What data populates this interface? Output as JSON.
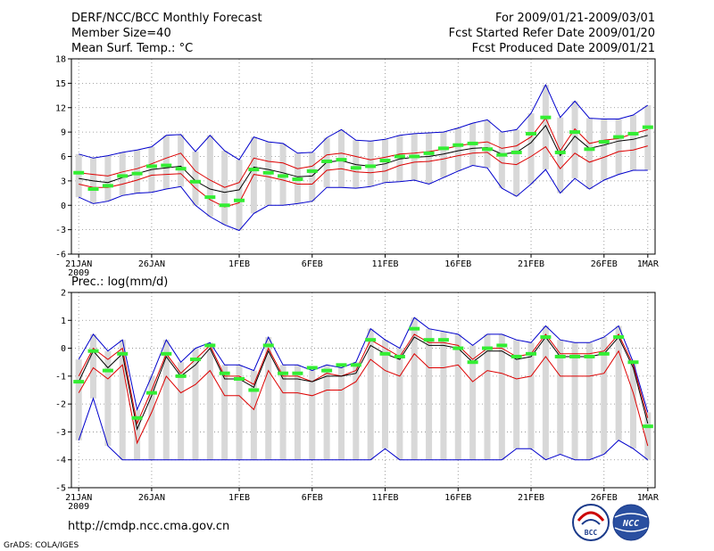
{
  "header": {
    "title": "DERF/NCC/BCC Monthly Forecast",
    "member_size": "Member Size=40",
    "variable1": "Mean Surf. Temp.: °C",
    "period": "For 2009/01/21-2009/03/01",
    "start_date": "Fcst Started Refer Date 2009/01/20",
    "produced_date": "Fcst Produced Date 2009/01/21"
  },
  "footer": {
    "url": "http://cmdp.ncc.cma.gov.cn",
    "grads": "GrADS: COLA/IGES",
    "logo_bcc": "BCC",
    "logo_ncc": "NCC"
  },
  "colors": {
    "max_min": "#0000cc",
    "plus_minus_sd": "#dd0000",
    "mean": "#000000",
    "box": "#d8d8d8",
    "obs": "#33ee33",
    "grid": "#888888"
  },
  "chart_data": [
    {
      "type": "line",
      "title": "Mean Surf. Temp.: °C",
      "x_ticks": [
        "21JAN",
        "26JAN",
        "1FEB",
        "6FEB",
        "11FEB",
        "16FEB",
        "21FEB",
        "26FEB",
        "1MAR"
      ],
      "x_year": "2009",
      "ylim": [
        -6,
        18
      ],
      "y_ticks": [
        "-6",
        "-3",
        "0",
        "3",
        "6",
        "9",
        "12",
        "15",
        "18"
      ],
      "days": 40,
      "series": [
        {
          "name": "max",
          "values": [
            6.3,
            5.8,
            6.1,
            6.5,
            6.8,
            7.2,
            8.6,
            8.7,
            6.6,
            8.6,
            6.7,
            5.6,
            8.4,
            7.8,
            7.6,
            6.4,
            6.5,
            8.3,
            9.3,
            8.0,
            7.9,
            8.1,
            8.6,
            8.8,
            8.9,
            9.0,
            9.5,
            10.1,
            10.5,
            9.0,
            9.3,
            11.3,
            14.8,
            10.8,
            12.8,
            10.7,
            10.6,
            10.6,
            11.1,
            12.3
          ]
        },
        {
          "name": "plus_sd",
          "values": [
            4.0,
            3.8,
            3.6,
            4.1,
            4.5,
            5.1,
            5.8,
            6.4,
            4.2,
            3.1,
            2.2,
            2.8,
            5.8,
            5.4,
            5.2,
            4.5,
            4.8,
            6.2,
            6.4,
            6.0,
            5.6,
            5.9,
            6.3,
            6.4,
            6.6,
            6.9,
            7.3,
            7.6,
            7.8,
            7.0,
            7.3,
            8.4,
            10.7,
            6.7,
            9.4,
            7.6,
            8.0,
            8.2,
            8.8,
            9.3
          ]
        },
        {
          "name": "mean",
          "values": [
            3.3,
            3.0,
            2.8,
            3.4,
            3.9,
            4.4,
            4.6,
            4.8,
            3.0,
            2.0,
            1.6,
            1.9,
            4.7,
            4.4,
            4.0,
            3.5,
            3.6,
            5.3,
            5.5,
            5.0,
            4.8,
            5.1,
            5.7,
            5.9,
            6.0,
            6.3,
            6.7,
            7.0,
            7.1,
            6.3,
            6.5,
            7.7,
            9.8,
            6.1,
            8.5,
            7.0,
            7.4,
            7.9,
            8.1,
            8.6
          ]
        },
        {
          "name": "minus_sd",
          "values": [
            2.6,
            2.2,
            2.2,
            2.6,
            3.1,
            3.7,
            3.8,
            3.9,
            2.1,
            0.7,
            -0.2,
            0.3,
            3.8,
            3.5,
            3.1,
            2.6,
            2.6,
            4.3,
            4.5,
            4.1,
            4.0,
            4.2,
            4.9,
            5.3,
            5.4,
            5.7,
            6.1,
            6.4,
            6.5,
            5.2,
            5.0,
            6.0,
            7.2,
            4.5,
            6.4,
            5.3,
            5.9,
            6.6,
            6.8,
            7.3
          ]
        },
        {
          "name": "min",
          "values": [
            1.0,
            0.2,
            0.5,
            1.2,
            1.5,
            1.6,
            2.0,
            2.3,
            0.0,
            -1.4,
            -2.4,
            -3.1,
            -1.0,
            0.0,
            0.0,
            0.2,
            0.5,
            2.2,
            2.2,
            2.1,
            2.3,
            2.8,
            2.9,
            3.1,
            2.6,
            3.4,
            4.2,
            4.9,
            4.6,
            2.1,
            1.1,
            2.6,
            4.4,
            1.5,
            3.3,
            2.0,
            3.1,
            3.8,
            4.3,
            4.3
          ]
        },
        {
          "name": "obs",
          "values": [
            4.0,
            2.0,
            2.4,
            3.6,
            3.9,
            4.8,
            4.9,
            4.5,
            2.9,
            1.0,
            0.0,
            0.6,
            4.4,
            4.0,
            3.6,
            3.2,
            4.2,
            5.4,
            5.6,
            4.6,
            4.8,
            5.5,
            6.0,
            6.0,
            6.4,
            7.0,
            7.4,
            7.6,
            6.9,
            6.2,
            6.5,
            8.8,
            10.8,
            6.5,
            9.0,
            6.9,
            7.8,
            8.4,
            8.8,
            9.6
          ]
        }
      ]
    },
    {
      "type": "line",
      "title": "Prec.: log(mm/d)",
      "x_ticks": [
        "21JAN",
        "26JAN",
        "1FEB",
        "6FEB",
        "11FEB",
        "16FEB",
        "21FEB",
        "26FEB",
        "1MAR"
      ],
      "x_year": "2009",
      "ylim": [
        -5,
        2
      ],
      "y_ticks": [
        "-5",
        "-4",
        "-3",
        "-2",
        "-1",
        "0",
        "1",
        "2"
      ],
      "days": 40,
      "series": [
        {
          "name": "max",
          "values": [
            -0.4,
            0.5,
            -0.1,
            0.3,
            -2.2,
            -1.0,
            0.3,
            -0.5,
            0.0,
            0.2,
            -0.6,
            -0.6,
            -0.8,
            0.4,
            -0.6,
            -0.6,
            -0.8,
            -0.6,
            -0.7,
            -0.5,
            0.7,
            0.3,
            0.0,
            1.1,
            0.7,
            0.6,
            0.5,
            0.1,
            0.5,
            0.5,
            0.3,
            0.2,
            0.8,
            0.3,
            0.2,
            0.2,
            0.4,
            0.8,
            -0.5,
            -2.3
          ]
        },
        {
          "name": "plus_sd",
          "values": [
            -1.0,
            0.0,
            -0.4,
            0.0,
            -2.7,
            -1.5,
            -0.2,
            -0.9,
            -0.4,
            0.1,
            -1.0,
            -1.0,
            -1.3,
            0.0,
            -1.0,
            -1.0,
            -1.2,
            -0.9,
            -1.0,
            -0.8,
            0.3,
            0.0,
            -0.3,
            0.5,
            0.2,
            0.2,
            0.1,
            -0.4,
            0.0,
            0.0,
            -0.3,
            -0.2,
            0.5,
            -0.2,
            -0.2,
            -0.2,
            -0.1,
            0.5,
            -0.6,
            -2.5
          ]
        },
        {
          "name": "mean",
          "values": [
            -1.2,
            -0.1,
            -0.7,
            -0.2,
            -2.9,
            -1.7,
            -0.3,
            -1.0,
            -0.6,
            0.0,
            -1.1,
            -1.1,
            -1.4,
            -0.1,
            -1.1,
            -1.1,
            -1.2,
            -1.0,
            -1.0,
            -0.9,
            0.1,
            -0.2,
            -0.4,
            0.4,
            0.1,
            0.1,
            0.0,
            -0.5,
            -0.1,
            -0.1,
            -0.4,
            -0.3,
            0.4,
            -0.3,
            -0.3,
            -0.3,
            -0.2,
            0.4,
            -0.7,
            -2.7
          ]
        },
        {
          "name": "minus_sd",
          "values": [
            -1.6,
            -0.7,
            -1.1,
            -0.6,
            -3.4,
            -2.3,
            -1.0,
            -1.6,
            -1.3,
            -0.8,
            -1.7,
            -1.7,
            -2.2,
            -0.8,
            -1.6,
            -1.6,
            -1.7,
            -1.5,
            -1.5,
            -1.2,
            -0.4,
            -0.8,
            -1.0,
            -0.2,
            -0.7,
            -0.7,
            -0.6,
            -1.2,
            -0.8,
            -0.9,
            -1.1,
            -1.0,
            -0.3,
            -1.0,
            -1.0,
            -1.0,
            -0.9,
            -0.1,
            -1.6,
            -3.5
          ]
        },
        {
          "name": "min",
          "values": [
            -3.3,
            -1.8,
            -3.5,
            -4.0,
            -4.0,
            -4.0,
            -4.0,
            -4.0,
            -4.0,
            -4.0,
            -4.0,
            -4.0,
            -4.0,
            -4.0,
            -4.0,
            -4.0,
            -4.0,
            -4.0,
            -4.0,
            -4.0,
            -4.0,
            -3.6,
            -4.0,
            -4.0,
            -4.0,
            -4.0,
            -4.0,
            -4.0,
            -4.0,
            -4.0,
            -3.6,
            -3.6,
            -4.0,
            -3.8,
            -4.0,
            -4.0,
            -3.8,
            -3.3,
            -3.6,
            -4.0
          ]
        },
        {
          "name": "obs",
          "values": [
            -1.2,
            -0.1,
            -0.8,
            -0.2,
            -2.5,
            -1.6,
            -0.2,
            -1.0,
            -0.4,
            0.1,
            -0.9,
            -1.1,
            -1.5,
            0.1,
            -0.9,
            -0.9,
            -0.7,
            -0.8,
            -0.6,
            -0.6,
            0.3,
            -0.2,
            -0.3,
            0.7,
            0.3,
            0.3,
            0.0,
            -0.5,
            0.0,
            0.1,
            -0.3,
            -0.2,
            0.4,
            -0.3,
            -0.3,
            -0.3,
            -0.2,
            0.4,
            -0.5,
            -2.8
          ]
        }
      ]
    }
  ]
}
